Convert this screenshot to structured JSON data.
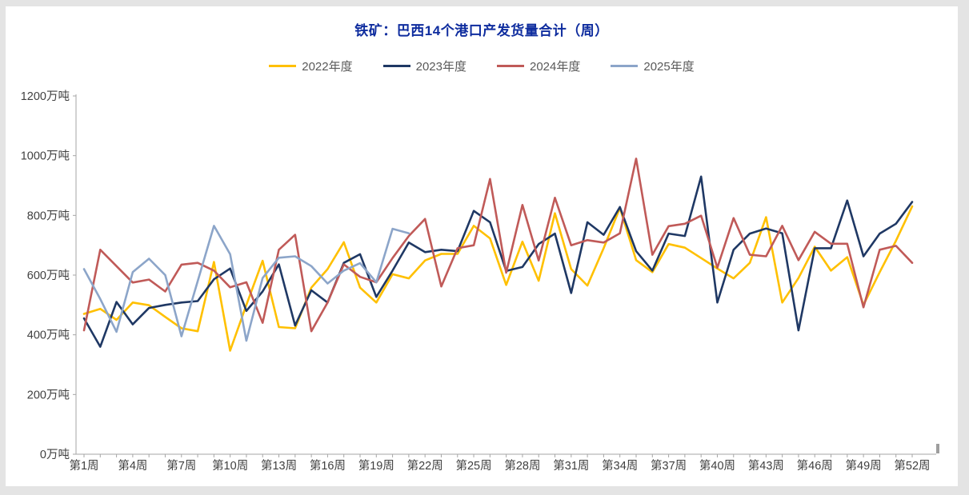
{
  "window": {
    "frame_color": "#e4e4e4",
    "panel_color": "#ffffff"
  },
  "title": {
    "text": "铁矿：巴西14个港口产发货量合计（周）",
    "color": "#0e2c9e"
  },
  "legend": {
    "text_color": "#595959",
    "items": [
      {
        "label": "2022年度",
        "color": "#FFC000"
      },
      {
        "label": "2023年度",
        "color": "#1F3864"
      },
      {
        "label": "2024年度",
        "color": "#C05A58"
      },
      {
        "label": "2025年度",
        "color": "#8CA5C9"
      }
    ]
  },
  "chart_data": {
    "type": "line",
    "unit": "万吨",
    "grid": false,
    "legend_position": "top",
    "axis_color": "#a6a6a6",
    "label_color": "#404040",
    "x_label_format": "第{n}周",
    "x_weeks": 52,
    "x_tick_weeks": [
      1,
      4,
      7,
      10,
      13,
      16,
      19,
      22,
      25,
      28,
      31,
      34,
      37,
      40,
      43,
      46,
      49,
      52
    ],
    "x_tick_labels": [
      "第1周",
      "第4周",
      "第7周",
      "第10周",
      "第13周",
      "第16周",
      "第19周",
      "第22周",
      "第25周",
      "第28周",
      "第31周",
      "第34周",
      "第37周",
      "第40周",
      "第43周",
      "第46周",
      "第49周",
      "第52周"
    ],
    "y_axis": {
      "min": 0,
      "max": 1200,
      "step": 200,
      "tick_labels": [
        "0万吨",
        "200万吨",
        "400万吨",
        "600万吨",
        "800万吨",
        "1000万吨",
        "1200万吨"
      ]
    },
    "series": [
      {
        "name": "2022年度",
        "color": "#FFC000",
        "values": [
          470,
          487,
          450,
          508,
          499,
          460,
          422,
          412,
          644,
          347,
          500,
          648,
          426,
          422,
          558,
          620,
          710,
          558,
          508,
          603,
          589,
          649,
          671,
          671,
          765,
          723,
          567,
          712,
          581,
          807,
          620,
          565,
          690,
          825,
          650,
          610,
          704,
          692,
          657,
          622,
          589,
          641,
          794,
          508,
          590,
          695,
          615,
          660,
          500,
          610,
          715,
          830
        ]
      },
      {
        "name": "2023年度",
        "color": "#1F3864",
        "values": [
          455,
          360,
          510,
          435,
          490,
          500,
          508,
          513,
          586,
          622,
          480,
          545,
          636,
          431,
          549,
          508,
          641,
          670,
          527,
          615,
          709,
          677,
          685,
          680,
          815,
          777,
          614,
          627,
          704,
          739,
          540,
          777,
          735,
          828,
          680,
          615,
          739,
          731,
          930,
          508,
          685,
          739,
          756,
          740,
          415,
          690,
          690,
          850,
          663,
          739,
          772,
          845
        ]
      },
      {
        "name": "2024年度",
        "color": "#C05A58",
        "values": [
          415,
          685,
          630,
          575,
          585,
          545,
          635,
          641,
          615,
          559,
          576,
          440,
          685,
          735,
          412,
          508,
          636,
          594,
          576,
          657,
          731,
          788,
          562,
          690,
          700,
          922,
          608,
          835,
          649,
          859,
          700,
          717,
          709,
          740,
          990,
          668,
          764,
          772,
          799,
          625,
          791,
          668,
          663,
          765,
          650,
          745,
          705,
          705,
          492,
          685,
          698,
          641
        ]
      },
      {
        "name": "2025年度",
        "color": "#8CA5C9",
        "values": [
          620,
          520,
          410,
          610,
          655,
          600,
          395,
          580,
          765,
          670,
          380,
          590,
          658,
          663,
          630,
          572,
          615,
          640,
          576,
          755,
          740
        ]
      }
    ]
  }
}
